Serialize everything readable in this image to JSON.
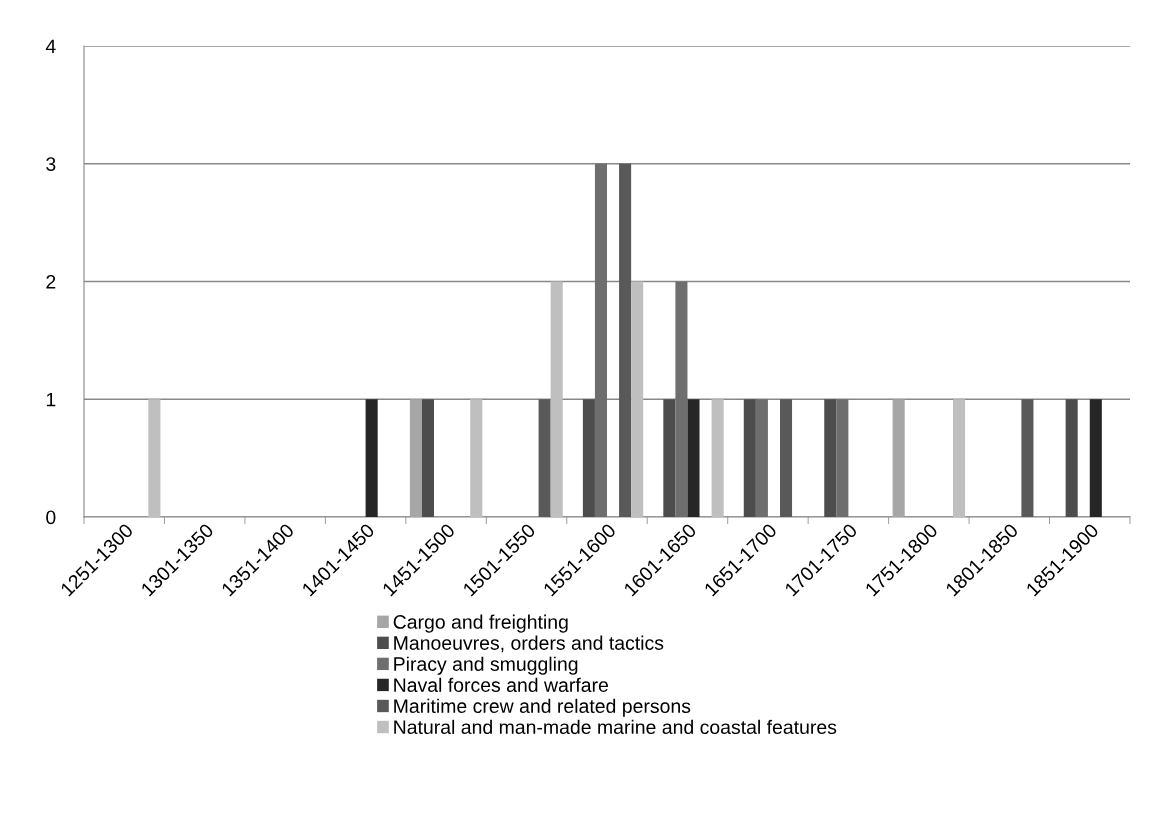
{
  "chart_data": {
    "type": "bar",
    "categories": [
      "1251-1300",
      "1301-1350",
      "1351-1400",
      "1401-1450",
      "1451-1500",
      "1501-1550",
      "1551-1600",
      "1601-1650",
      "1651-1700",
      "1701-1750",
      "1751-1800",
      "1801-1850",
      "1851-1900"
    ],
    "series": [
      {
        "name": "Cargo and freighting",
        "color": "#a6a6a6",
        "values": [
          0,
          0,
          0,
          0,
          1,
          0,
          0,
          0,
          0,
          0,
          1,
          0,
          0
        ]
      },
      {
        "name": "Manoeuvres, orders and tactics",
        "color": "#4d4d4d",
        "values": [
          0,
          0,
          0,
          0,
          1,
          0,
          1,
          1,
          1,
          1,
          0,
          0,
          1
        ]
      },
      {
        "name": "Piracy and smuggling",
        "color": "#6e6e6e",
        "values": [
          0,
          0,
          0,
          0,
          0,
          0,
          3,
          2,
          1,
          1,
          0,
          0,
          0
        ]
      },
      {
        "name": "Naval forces and warfare",
        "color": "#262626",
        "values": [
          0,
          0,
          0,
          1,
          0,
          0,
          0,
          1,
          0,
          0,
          0,
          0,
          1
        ]
      },
      {
        "name": "Maritime crew and related persons",
        "color": "#595959",
        "values": [
          0,
          0,
          0,
          0,
          0,
          1,
          3,
          0,
          1,
          0,
          0,
          1,
          0
        ]
      },
      {
        "name": "Natural and man-made marine and coastal features",
        "color": "#bfbfbf",
        "values": [
          1,
          0,
          0,
          0,
          1,
          2,
          2,
          1,
          0,
          0,
          1,
          0,
          0
        ]
      }
    ],
    "ylim": [
      0,
      4
    ],
    "yticks": [
      0,
      1,
      2,
      3,
      4
    ],
    "grid": "y",
    "legend": "bottom"
  }
}
